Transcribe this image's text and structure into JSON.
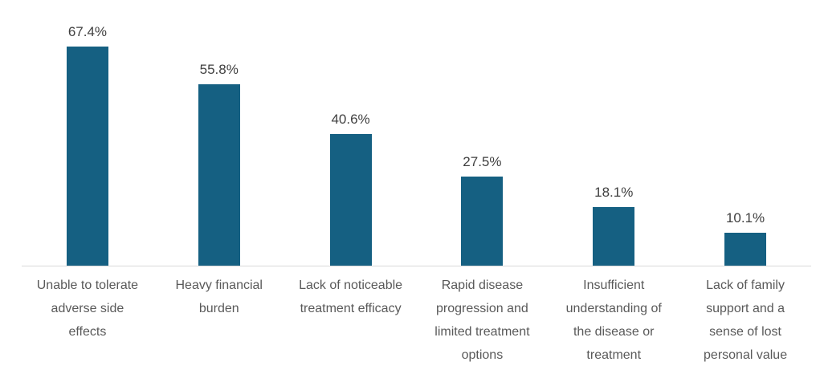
{
  "chart_data": {
    "type": "bar",
    "title": "",
    "categories": [
      "Unable to tolerate adverse side effects",
      "Heavy financial burden",
      "Lack of noticeable treatment efficacy",
      "Rapid disease progression and limited treatment options",
      "Insufficient understanding of the disease or treatment",
      "Lack of family support and a sense of lost personal value"
    ],
    "values": [
      67.4,
      55.8,
      40.6,
      27.5,
      18.1,
      10.1
    ],
    "value_labels": [
      "67.4%",
      "55.8%",
      "40.6%",
      "27.5%",
      "18.1%",
      "10.1%"
    ],
    "unit": "%",
    "ylim": [
      0,
      70
    ],
    "grid": false,
    "legend": "none",
    "xlabel": "",
    "ylabel": "",
    "bar_color": "#156082",
    "baseline_color": "#d9d9d9",
    "value_label_color": "#404040",
    "category_label_color": "#595959"
  },
  "xaxis": {
    "labels_display": [
      "Unable to tolerate\nadverse side\neffects",
      "Heavy financial\nburden",
      "Lack of noticeable\ntreatment efficacy",
      "Rapid disease\nprogression and\nlimited treatment\noptions",
      "Insufficient\nunderstanding of\nthe disease or\ntreatment",
      "Lack of family\nsupport and a\nsense of lost\npersonal value"
    ]
  }
}
